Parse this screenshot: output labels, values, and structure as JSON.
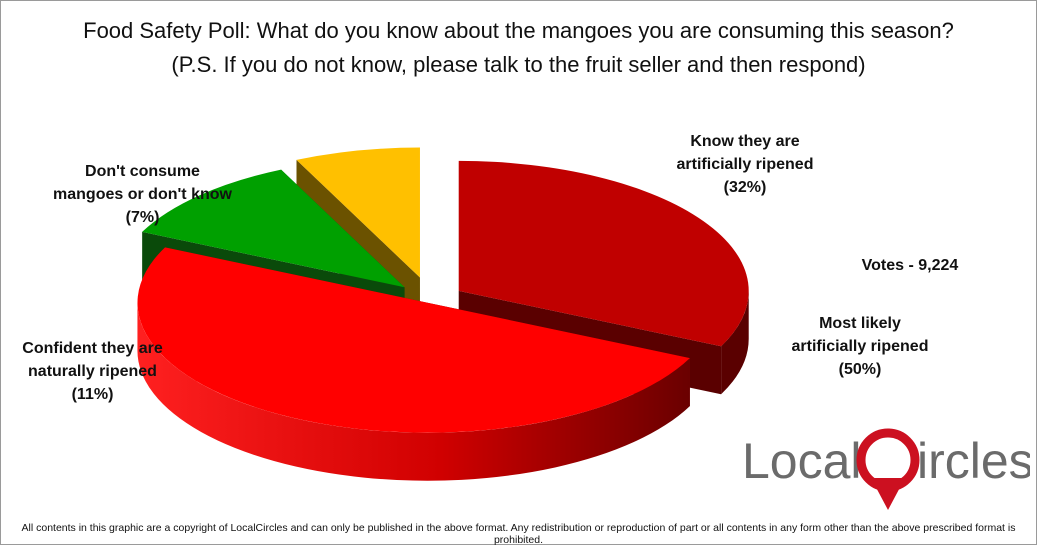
{
  "chart_data": {
    "type": "pie",
    "title": "Food Safety Poll: What do you know about the mangoes you are consuming this season?",
    "subtitle": "(P.S. If you do not know, please talk to the fruit seller and then respond)",
    "slices": [
      {
        "label_lines": [
          "Know they are",
          "artificially ripened",
          "(32%)"
        ],
        "value": 32,
        "color": "#c00000",
        "side_color": "#5a0000"
      },
      {
        "label_lines": [
          "Most likely",
          "artificially ripened",
          "(50%)"
        ],
        "value": 50,
        "color": "#ff0000",
        "side_color": "#7a0000"
      },
      {
        "label_lines": [
          "Confident they are",
          "naturally ripened",
          "(11%)"
        ],
        "value": 11,
        "color": "#00a000",
        "side_color": "#0a4a0a"
      },
      {
        "label_lines": [
          "Don't consume",
          "mangoes or don't know",
          "(7%)"
        ],
        "value": 7,
        "color": "#ffc000",
        "side_color": "#6b5200"
      }
    ],
    "annotation": "Votes - 9,224"
  },
  "logo": {
    "text_left": "Local",
    "text_right": "ircles"
  },
  "footer": "All contents in this graphic are a copyright of LocalCircles and can only be published in the above format. Any redistribution or reproduction of part or all contents in any form other than the above prescribed format is prohibited."
}
